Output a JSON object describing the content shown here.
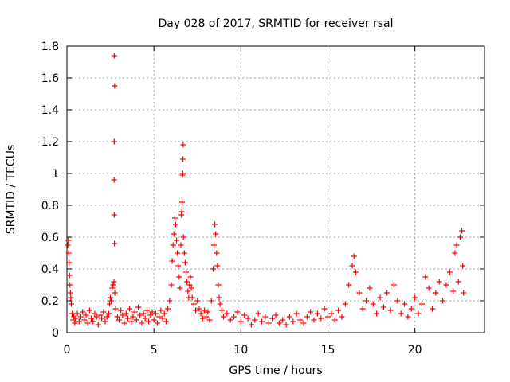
{
  "chart_data": {
    "type": "scatter",
    "title": "Day 028 of 2017, SRMTID for receiver rsal",
    "xlabel": "GPS time / hours",
    "ylabel": "SRMTID / TECUs",
    "xlim": [
      0,
      24
    ],
    "ylim": [
      0,
      1.8
    ],
    "x_ticks": [
      0,
      5,
      10,
      15,
      20
    ],
    "x_tick_labels": [
      "0",
      "5",
      "10",
      "15",
      "20"
    ],
    "y_ticks": [
      0,
      0.2,
      0.4,
      0.6,
      0.8,
      1,
      1.2,
      1.4,
      1.6,
      1.8
    ],
    "y_tick_labels": [
      "0",
      "0.2",
      "0.4",
      "0.6",
      "0.8",
      "1",
      "1.2",
      "1.4",
      "1.6",
      "1.8"
    ],
    "grid": true,
    "marker": "+",
    "series": [
      {
        "name": "SRMTID",
        "color": "#ff0000",
        "points": [
          [
            0.05,
            0.55
          ],
          [
            0.08,
            0.58
          ],
          [
            0.1,
            0.5
          ],
          [
            0.12,
            0.44
          ],
          [
            0.15,
            0.36
          ],
          [
            0.17,
            0.3
          ],
          [
            0.2,
            0.25
          ],
          [
            0.22,
            0.22
          ],
          [
            0.25,
            0.18
          ],
          [
            0.3,
            0.12
          ],
          [
            0.35,
            0.08
          ],
          [
            0.4,
            0.1
          ],
          [
            0.45,
            0.06
          ],
          [
            0.5,
            0.09
          ],
          [
            0.6,
            0.12
          ],
          [
            0.7,
            0.07
          ],
          [
            0.8,
            0.1
          ],
          [
            0.9,
            0.13
          ],
          [
            1.0,
            0.08
          ],
          [
            1.1,
            0.11
          ],
          [
            1.2,
            0.06
          ],
          [
            1.3,
            0.14
          ],
          [
            1.4,
            0.09
          ],
          [
            1.5,
            0.07
          ],
          [
            1.6,
            0.12
          ],
          [
            1.7,
            0.1
          ],
          [
            1.8,
            0.05
          ],
          [
            1.9,
            0.11
          ],
          [
            2.0,
            0.09
          ],
          [
            2.1,
            0.13
          ],
          [
            2.2,
            0.07
          ],
          [
            2.3,
            0.1
          ],
          [
            2.4,
            0.12
          ],
          [
            2.45,
            0.18
          ],
          [
            2.5,
            0.22
          ],
          [
            2.55,
            0.2
          ],
          [
            2.6,
            0.28
          ],
          [
            2.65,
            0.3
          ],
          [
            2.7,
            0.32
          ],
          [
            2.75,
            0.25
          ],
          [
            2.72,
            1.74
          ],
          [
            2.74,
            1.55
          ],
          [
            2.72,
            1.2
          ],
          [
            2.71,
            0.96
          ],
          [
            2.72,
            0.74
          ],
          [
            2.73,
            0.56
          ],
          [
            2.8,
            0.15
          ],
          [
            2.9,
            0.1
          ],
          [
            3.0,
            0.08
          ],
          [
            3.1,
            0.14
          ],
          [
            3.2,
            0.11
          ],
          [
            3.3,
            0.06
          ],
          [
            3.4,
            0.12
          ],
          [
            3.5,
            0.09
          ],
          [
            3.6,
            0.15
          ],
          [
            3.7,
            0.07
          ],
          [
            3.8,
            0.1
          ],
          [
            3.9,
            0.13
          ],
          [
            4.0,
            0.08
          ],
          [
            4.1,
            0.16
          ],
          [
            4.2,
            0.11
          ],
          [
            4.3,
            0.06
          ],
          [
            4.4,
            0.12
          ],
          [
            4.5,
            0.09
          ],
          [
            4.6,
            0.14
          ],
          [
            4.7,
            0.07
          ],
          [
            4.8,
            0.11
          ],
          [
            4.9,
            0.13
          ],
          [
            5.0,
            0.08
          ],
          [
            5.1,
            0.12
          ],
          [
            5.2,
            0.06
          ],
          [
            5.3,
            0.1
          ],
          [
            5.4,
            0.14
          ],
          [
            5.5,
            0.09
          ],
          [
            5.6,
            0.12
          ],
          [
            5.7,
            0.07
          ],
          [
            5.8,
            0.15
          ],
          [
            5.9,
            0.2
          ],
          [
            6.0,
            0.3
          ],
          [
            6.05,
            0.45
          ],
          [
            6.1,
            0.55
          ],
          [
            6.15,
            0.62
          ],
          [
            6.2,
            0.72
          ],
          [
            6.25,
            0.68
          ],
          [
            6.3,
            0.58
          ],
          [
            6.35,
            0.5
          ],
          [
            6.4,
            0.42
          ],
          [
            6.45,
            0.35
          ],
          [
            6.5,
            0.28
          ],
          [
            6.55,
            0.55
          ],
          [
            6.58,
            0.74
          ],
          [
            6.6,
            0.76
          ],
          [
            6.62,
            0.82
          ],
          [
            6.64,
            0.99
          ],
          [
            6.66,
            1.0
          ],
          [
            6.67,
            1.09
          ],
          [
            6.68,
            1.18
          ],
          [
            6.7,
            0.6
          ],
          [
            6.75,
            0.5
          ],
          [
            6.8,
            0.44
          ],
          [
            6.85,
            0.38
          ],
          [
            6.9,
            0.32
          ],
          [
            6.95,
            0.26
          ],
          [
            7.0,
            0.22
          ],
          [
            7.05,
            0.3
          ],
          [
            7.1,
            0.35
          ],
          [
            7.15,
            0.28
          ],
          [
            7.2,
            0.22
          ],
          [
            7.3,
            0.18
          ],
          [
            7.4,
            0.14
          ],
          [
            7.5,
            0.2
          ],
          [
            7.6,
            0.15
          ],
          [
            7.7,
            0.12
          ],
          [
            7.8,
            0.09
          ],
          [
            7.9,
            0.14
          ],
          [
            8.0,
            0.1
          ],
          [
            8.1,
            0.13
          ],
          [
            8.2,
            0.08
          ],
          [
            8.3,
            0.2
          ],
          [
            8.4,
            0.4
          ],
          [
            8.45,
            0.55
          ],
          [
            8.5,
            0.68
          ],
          [
            8.55,
            0.62
          ],
          [
            8.6,
            0.5
          ],
          [
            8.65,
            0.42
          ],
          [
            8.7,
            0.3
          ],
          [
            8.75,
            0.22
          ],
          [
            8.8,
            0.18
          ],
          [
            8.9,
            0.14
          ],
          [
            9.0,
            0.1
          ],
          [
            9.2,
            0.12
          ],
          [
            9.4,
            0.08
          ],
          [
            9.6,
            0.1
          ],
          [
            9.8,
            0.13
          ],
          [
            10.0,
            0.07
          ],
          [
            10.2,
            0.11
          ],
          [
            10.4,
            0.09
          ],
          [
            10.6,
            0.05
          ],
          [
            10.8,
            0.08
          ],
          [
            11.0,
            0.12
          ],
          [
            11.2,
            0.07
          ],
          [
            11.4,
            0.1
          ],
          [
            11.6,
            0.06
          ],
          [
            11.8,
            0.09
          ],
          [
            12.0,
            0.11
          ],
          [
            12.2,
            0.06
          ],
          [
            12.4,
            0.08
          ],
          [
            12.6,
            0.05
          ],
          [
            12.8,
            0.1
          ],
          [
            13.0,
            0.07
          ],
          [
            13.2,
            0.12
          ],
          [
            13.4,
            0.08
          ],
          [
            13.6,
            0.06
          ],
          [
            13.8,
            0.1
          ],
          [
            14.0,
            0.13
          ],
          [
            14.2,
            0.08
          ],
          [
            14.4,
            0.12
          ],
          [
            14.6,
            0.09
          ],
          [
            14.8,
            0.15
          ],
          [
            15.0,
            0.1
          ],
          [
            15.2,
            0.12
          ],
          [
            15.4,
            0.08
          ],
          [
            15.6,
            0.14
          ],
          [
            15.8,
            0.1
          ],
          [
            16.0,
            0.18
          ],
          [
            16.2,
            0.3
          ],
          [
            16.4,
            0.42
          ],
          [
            16.5,
            0.48
          ],
          [
            16.6,
            0.38
          ],
          [
            16.8,
            0.25
          ],
          [
            17.0,
            0.15
          ],
          [
            17.2,
            0.2
          ],
          [
            17.4,
            0.28
          ],
          [
            17.6,
            0.18
          ],
          [
            17.8,
            0.12
          ],
          [
            18.0,
            0.22
          ],
          [
            18.2,
            0.16
          ],
          [
            18.4,
            0.25
          ],
          [
            18.6,
            0.14
          ],
          [
            18.8,
            0.3
          ],
          [
            19.0,
            0.2
          ],
          [
            19.2,
            0.12
          ],
          [
            19.4,
            0.18
          ],
          [
            19.6,
            0.1
          ],
          [
            19.8,
            0.15
          ],
          [
            20.0,
            0.22
          ],
          [
            20.2,
            0.12
          ],
          [
            20.4,
            0.18
          ],
          [
            20.6,
            0.35
          ],
          [
            20.8,
            0.28
          ],
          [
            21.0,
            0.15
          ],
          [
            21.2,
            0.25
          ],
          [
            21.4,
            0.32
          ],
          [
            21.6,
            0.2
          ],
          [
            21.8,
            0.3
          ],
          [
            22.0,
            0.38
          ],
          [
            22.2,
            0.26
          ],
          [
            22.3,
            0.5
          ],
          [
            22.4,
            0.55
          ],
          [
            22.5,
            0.32
          ],
          [
            22.6,
            0.6
          ],
          [
            22.7,
            0.64
          ],
          [
            22.75,
            0.42
          ],
          [
            22.8,
            0.25
          ]
        ]
      }
    ]
  }
}
